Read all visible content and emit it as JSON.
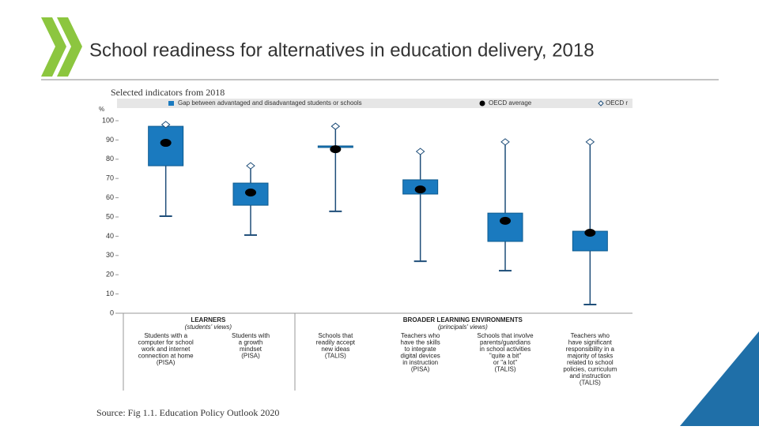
{
  "header": {
    "title": "School readiness for alternatives in education delivery, 2018",
    "subtitle": "Selected indicators from 2018"
  },
  "chart_data": {
    "type": "box",
    "y_unit": "%",
    "ylim": [
      0,
      100
    ],
    "yticks": [
      0,
      10,
      20,
      30,
      40,
      50,
      60,
      70,
      80,
      90,
      100
    ],
    "grid": false,
    "groups": [
      {
        "title": "LEARNERS",
        "subtitle": "(students' views)",
        "count": 2
      },
      {
        "title": "BROADER LEARNING ENVIRONMENTS",
        "subtitle": "(principals' views)",
        "count": 4
      }
    ],
    "categories": [
      [
        "Students with a",
        "computer for school",
        "work and internet",
        "connection at home",
        "(PISA)"
      ],
      [
        "Students with",
        "a growth",
        "mindset",
        "(PISA)"
      ],
      [
        "Schools that",
        "readily accept",
        "new ideas",
        "(TALIS)"
      ],
      [
        "Teachers who",
        "have the skills",
        "to integrate",
        "digital devices",
        "in instruction",
        "(PISA)"
      ],
      [
        "Schools that involve",
        "parents/guardians",
        "in school activities",
        "\"quite a bit\"",
        "or \"a lot\"",
        "(TALIS)"
      ],
      [
        "Teachers who",
        "have significant",
        "responsibility in a",
        "majority of tasks",
        "related to school",
        "policies, curriculum",
        "and instruction",
        "(TALIS)"
      ]
    ],
    "series": [
      {
        "name": "Gap between advantaged and disadvantaged students or schools",
        "color": "#1a7abf",
        "high": [
          97.1,
          67.6,
          86.9,
          69.3,
          52,
          42.6
        ],
        "low": [
          76.6,
          56.1,
          86.1,
          61.9,
          37.3,
          32.4
        ]
      },
      {
        "name": "OECD average",
        "color": "#000000",
        "values": [
          88.5,
          62.7,
          85.2,
          64.3,
          48,
          41.8
        ]
      },
      {
        "name": "OECD r",
        "color": "#1f4e79",
        "max": [
          98,
          76.6,
          97.1,
          84,
          89,
          89
        ],
        "min": [
          50.4,
          40.6,
          52.9,
          27,
          22.1,
          4.5
        ]
      }
    ]
  },
  "footer": {
    "source": "Source: Fig 1.1. Education Policy Outlook 2020"
  }
}
